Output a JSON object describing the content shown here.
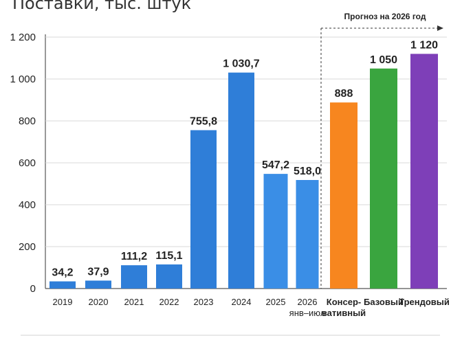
{
  "chart_data": {
    "type": "bar",
    "title": "Поставки, тыс. штук",
    "xlabel": "",
    "ylabel": "",
    "ylim": [
      0,
      1200
    ],
    "yticks": [
      0,
      200,
      400,
      600,
      800,
      1000,
      1200
    ],
    "ytick_labels": [
      "0",
      "200",
      "400",
      "600",
      "800",
      "1 000",
      "1 200"
    ],
    "grid": true,
    "bars": [
      {
        "category": "2019",
        "value": 34.2,
        "label": "34,2",
        "color": "#2f7ed8"
      },
      {
        "category": "2020",
        "value": 37.9,
        "label": "37,9",
        "color": "#2f7ed8"
      },
      {
        "category": "2021",
        "value": 111.2,
        "label": "111,2",
        "color": "#2f7ed8"
      },
      {
        "category": "2022",
        "value": 115.1,
        "label": "115,1",
        "color": "#2f7ed8"
      },
      {
        "category": "2023",
        "value": 755.8,
        "label": "755,8",
        "color": "#2f7ed8"
      },
      {
        "category": "2024",
        "value": 1030.7,
        "label": "1 030,7",
        "color": "#2f7ed8"
      },
      {
        "category": "2025",
        "value": 547.2,
        "label": "547,2",
        "color": "#3a8ee6"
      },
      {
        "category": "2026",
        "sublabel": "янв–июл",
        "value": 518.0,
        "label": "518,0",
        "color": "#3a8ee6"
      },
      {
        "category": "Консер-",
        "sublabel": "вативный",
        "value": 888,
        "label": "888",
        "color": "#f7861f",
        "label_color": "#f7861f",
        "category_color": "#f7861f"
      },
      {
        "category": "Базовый",
        "value": 1050,
        "label": "1 050",
        "color": "#3aa53f",
        "category_color": "#3aa53f"
      },
      {
        "category": "Трендовый",
        "value": 1120,
        "label": "1 120",
        "color": "#7e3fb8",
        "category_color": "#7e3fb8"
      }
    ],
    "forecast_region": {
      "label": "Прогноз на 2026 год",
      "from_index": 8
    }
  }
}
